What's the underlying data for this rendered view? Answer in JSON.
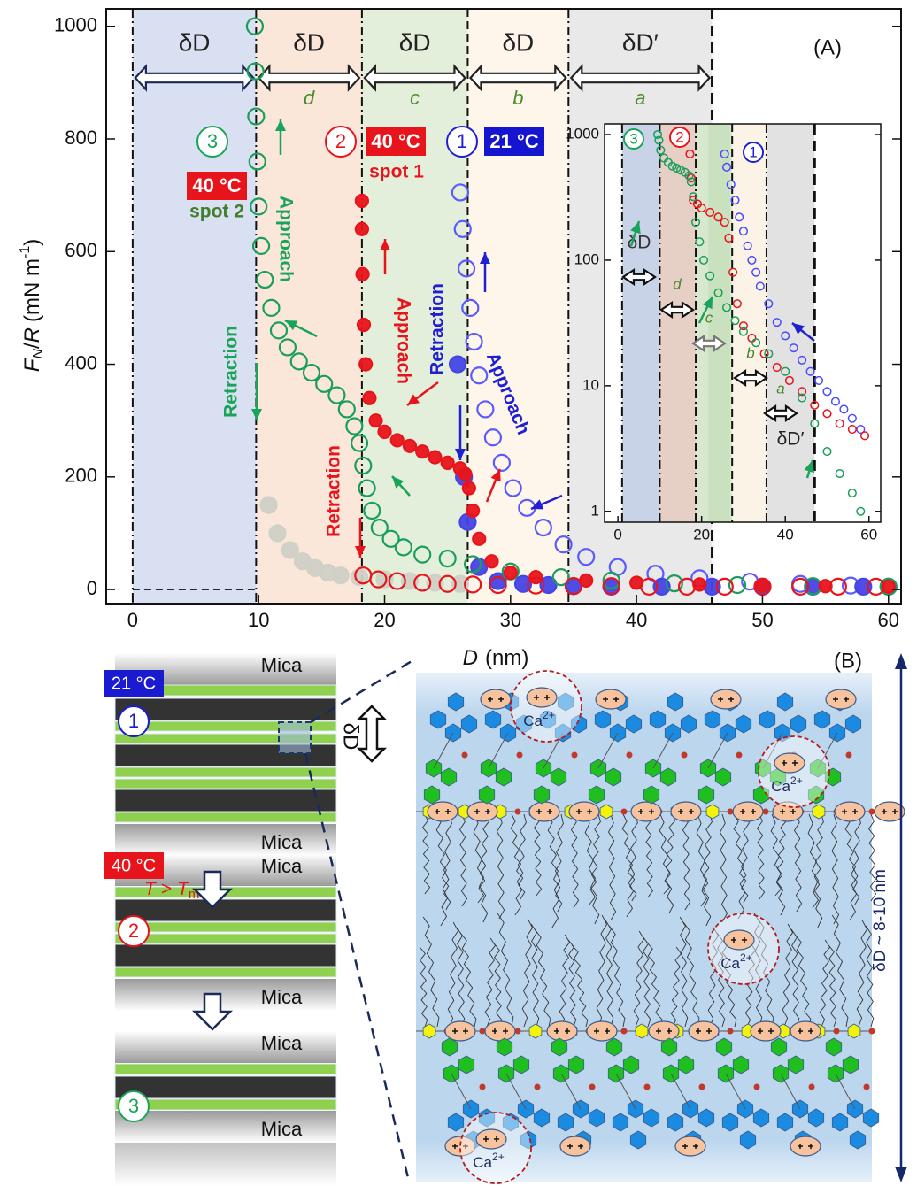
{
  "chart_data": [
    {
      "type": "scatter",
      "x_label": [
        "D",
        "(nm)"
      ],
      "y_label": [
        "F",
        "N",
        "/",
        "R",
        "(mN m",
        "-1",
        ")"
      ],
      "xlim": [
        -2.1,
        61
      ],
      "ylim": [
        -25,
        1031
      ],
      "xticks": [
        0,
        10,
        20,
        30,
        40,
        50,
        60
      ],
      "yticks": [
        0,
        200,
        400,
        600,
        800,
        1000
      ],
      "regions": [
        {
          "from": 0,
          "to": 9.8,
          "color": "#d9e0f1",
          "label": "δD"
        },
        {
          "from": 9.8,
          "to": 18.2,
          "color": "#fbe6da",
          "label": "δD",
          "letter": "d"
        },
        {
          "from": 18.2,
          "to": 26.6,
          "color": "#e3efda",
          "label": "δD",
          "letter": "c"
        },
        {
          "from": 26.6,
          "to": 34.6,
          "color": "#fef6ea",
          "label": "δD",
          "letter": "b"
        },
        {
          "from": 34.6,
          "to": 46,
          "color": "#e9e9e9",
          "label": "δD′",
          "letter": "a"
        }
      ],
      "series": [
        {
          "color": "#cfd0c6",
          "marker": "filled",
          "x": [
            10.8,
            11.5,
            12.5,
            13.5,
            14.5,
            15.5,
            16.5,
            18,
            20,
            22,
            24,
            26
          ],
          "values": [
            150,
            100,
            70,
            50,
            38,
            30,
            25,
            22,
            18,
            15,
            12,
            10
          ]
        },
        {
          "color": "#5a5aff",
          "marker": "open",
          "x": [
            26.0,
            26.2,
            26.5,
            26.8,
            27.1,
            27.5,
            28.0,
            28.6,
            29.3,
            30.2,
            31.3,
            32.6,
            34.2,
            36.0,
            38.5,
            41.5,
            45,
            49,
            53,
            57,
            60
          ],
          "values": [
            705,
            640,
            570,
            500,
            440,
            380,
            320,
            270,
            225,
            180,
            145,
            110,
            80,
            58,
            40,
            28,
            20,
            14,
            10,
            7,
            5
          ]
        },
        {
          "color": "#4545e6",
          "marker": "filled",
          "x": [
            25.8,
            26.3,
            26.6,
            27.5,
            29,
            31,
            33,
            35,
            38,
            42,
            46,
            50,
            54,
            58
          ],
          "values": [
            400,
            200,
            120,
            40,
            15,
            10,
            8,
            6,
            5,
            5,
            5,
            5,
            5,
            5
          ]
        },
        {
          "color": "#1a9e5c",
          "marker": "open",
          "x": [
            9.7,
            9.75,
            9.8,
            9.9,
            10,
            10.2,
            10.5,
            11,
            11.6,
            12.3,
            13.2,
            14.2,
            15.2,
            16.2,
            17,
            17.6,
            18,
            18.3,
            18.6,
            19,
            19.6,
            20.5,
            21.5,
            23,
            25,
            27,
            30,
            34,
            38,
            43,
            48,
            54,
            60
          ],
          "values": [
            1000,
            920,
            840,
            760,
            680,
            610,
            550,
            500,
            460,
            430,
            405,
            385,
            365,
            345,
            320,
            290,
            260,
            220,
            180,
            140,
            110,
            90,
            75,
            62,
            55,
            45,
            32,
            22,
            16,
            11,
            8,
            6,
            5
          ]
        },
        {
          "color": "#e8141b",
          "marker": "filled",
          "x": [
            60,
            55,
            50,
            45,
            40,
            36,
            32,
            30,
            28.5,
            27.5,
            27,
            26.7,
            26.4,
            26,
            25,
            24,
            23,
            22,
            21,
            20,
            19.3,
            18.8,
            18.5,
            18.35,
            18.25,
            18.2,
            18.2
          ],
          "values": [
            5,
            6,
            7,
            9,
            12,
            16,
            22,
            30,
            50,
            90,
            140,
            180,
            205,
            215,
            225,
            235,
            245,
            255,
            265,
            280,
            300,
            340,
            400,
            470,
            560,
            640,
            690
          ]
        },
        {
          "color": "#e8141b",
          "marker": "open",
          "x": [
            18.3,
            19.5,
            21,
            23,
            25,
            27,
            29,
            32,
            35,
            38,
            41,
            44,
            47,
            50,
            53,
            56,
            59
          ],
          "values": [
            25,
            18,
            15,
            12,
            10,
            9,
            8,
            7,
            6,
            6,
            5,
            5,
            5,
            5,
            5,
            5,
            5
          ]
        }
      ],
      "annotations": [
        {
          "text": "3",
          "color": "#1aa35a",
          "kind": "circle"
        },
        {
          "text": "40 °C",
          "color": "#e8141b",
          "kind": "box"
        },
        {
          "text": "spot 2",
          "color": "#3f7f2a",
          "kind": "bold"
        },
        {
          "text": "Approach",
          "color": "#1aa35a",
          "kind": "down"
        },
        {
          "text": "Retraction",
          "color": "#1aa35a",
          "kind": "up"
        },
        {
          "text": "2",
          "color": "#e8141b",
          "kind": "circle"
        },
        {
          "text": "40 °C",
          "color": "#e8141b",
          "kind": "box"
        },
        {
          "text": "spot 1",
          "color": "#e8141b",
          "kind": "bold"
        },
        {
          "text": "Approach",
          "color": "#e8141b",
          "kind": "down"
        },
        {
          "text": "Retraction",
          "color": "#e8141b",
          "kind": "up"
        },
        {
          "text": "1",
          "color": "#2020d0",
          "kind": "circle"
        },
        {
          "text": "21 °C",
          "color": "#1515d0",
          "kind": "box"
        },
        {
          "text": "Retraction",
          "color": "#2020d0",
          "kind": "up"
        },
        {
          "text": "Approach",
          "color": "#2020d0",
          "kind": "slant"
        },
        {
          "text": "(A)",
          "color": "#111111",
          "kind": "plain"
        }
      ]
    },
    {
      "type": "scatter",
      "log_y": true,
      "xlim": [
        -3.2,
        62.8
      ],
      "ylim": [
        0.82,
        1215
      ],
      "xticks": [
        0,
        20,
        40,
        60
      ],
      "yticks": [
        1,
        10,
        100,
        1000
      ],
      "regions": [
        {
          "from": 1,
          "to": 10,
          "color": "#c9d3e8",
          "label": "δD"
        },
        {
          "from": 10,
          "to": 18.6,
          "color": "#e6d0c6",
          "letter": "d"
        },
        {
          "from": 18.6,
          "to": 27.3,
          "color": "#d7e8cf",
          "letter": "c"
        },
        {
          "from": 27.3,
          "to": 35.5,
          "color": "#fbf3e6",
          "letter": "b"
        },
        {
          "from": 35.5,
          "to": 47,
          "color": "#e2e2e2",
          "letter": "a",
          "label": "δD′"
        }
      ],
      "series": [
        {
          "color": "#4b4bff",
          "marker": "open",
          "x": [
            25.5,
            26,
            27,
            28,
            29,
            30,
            31,
            32,
            33,
            34,
            36,
            38,
            40,
            42,
            44,
            46,
            48,
            50,
            52,
            54,
            56,
            58
          ],
          "values": [
            700,
            550,
            400,
            300,
            220,
            170,
            130,
            100,
            80,
            62,
            45,
            32,
            25,
            20,
            16,
            13,
            11,
            9,
            7.5,
            6.5,
            5.5,
            4.5
          ]
        },
        {
          "color": "#e8141b",
          "marker": "open",
          "x": [
            17.2,
            17.5,
            18,
            19,
            20,
            22,
            24,
            25.5,
            26.5,
            27.5,
            28.5,
            30,
            32,
            35,
            38,
            41,
            44,
            47,
            50,
            53,
            56,
            59
          ],
          "values": [
            700,
            450,
            300,
            280,
            260,
            240,
            220,
            200,
            150,
            80,
            45,
            30,
            24,
            18,
            14,
            11,
            9,
            7,
            6,
            5,
            4.5,
            4
          ]
        },
        {
          "color": "#1a9e5c",
          "marker": "open",
          "x": [
            9.5,
            9.8,
            10.2,
            11,
            12,
            13,
            14,
            15,
            16,
            17,
            17.5,
            18,
            18.6,
            19.5,
            20.5,
            22,
            24,
            26,
            28,
            30,
            33,
            36,
            40,
            44,
            47,
            50,
            53,
            56,
            58
          ],
          "values": [
            1000,
            900,
            750,
            650,
            600,
            560,
            540,
            520,
            500,
            470,
            420,
            320,
            200,
            140,
            100,
            75,
            55,
            42,
            33,
            27,
            22,
            18,
            13,
            8,
            5,
            3,
            2,
            1.4,
            1
          ]
        }
      ],
      "annotations": [
        {
          "text": "3",
          "color": "#1aa35a",
          "kind": "circle"
        },
        {
          "text": "2",
          "color": "#e8141b",
          "kind": "circle"
        },
        {
          "text": "1",
          "color": "#2020d0",
          "kind": "circle"
        }
      ]
    }
  ],
  "panel_b": {
    "label": "(B)",
    "mica": "Mica",
    "states": [
      {
        "temp": "21 °C",
        "color": "#1a1ad0",
        "number": "1"
      },
      {
        "temp": "40 °C",
        "color": "#e8141b",
        "number": "2"
      },
      {
        "color": "#1aa35a",
        "number": "3"
      }
    ],
    "transition": [
      "T",
      ">",
      "m"
    ],
    "delta_d": "δD",
    "ion": [
      "Ca",
      "2+"
    ],
    "spacing": "δD ~ 8-10 nm"
  }
}
